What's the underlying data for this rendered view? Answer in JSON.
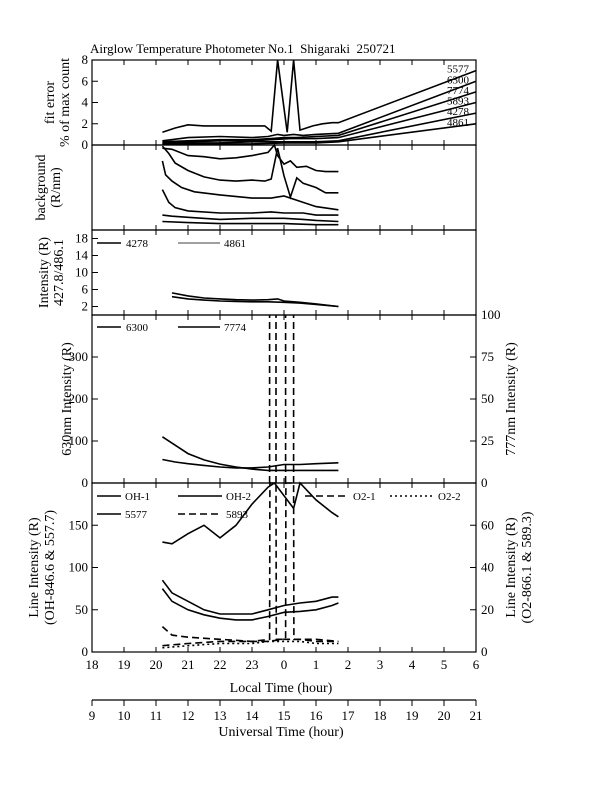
{
  "title": "Airglow Temperature Photometer No.1  Shigaraki  250721",
  "axes": {
    "local_time": {
      "label": "Local Time (hour)",
      "ticks": [
        "18",
        "19",
        "20",
        "21",
        "22",
        "23",
        "0",
        "1",
        "2",
        "3",
        "4",
        "5",
        "6"
      ]
    },
    "universal_time": {
      "label": "Universal Time (hour)",
      "ticks": [
        "9",
        "10",
        "11",
        "12",
        "13",
        "14",
        "15",
        "16",
        "17",
        "18",
        "19",
        "20",
        "21"
      ]
    }
  },
  "chart_data": [
    {
      "type": "line",
      "id": "fit_error",
      "ylabel_lines": [
        "fit error",
        "% of max count"
      ],
      "ylim": [
        0,
        8
      ],
      "yticks": [
        "0",
        "2",
        "4",
        "6",
        "8"
      ],
      "x_units": "universal time (hour)",
      "series": [
        {
          "name": "5577",
          "label": "5577",
          "dash": "solid",
          "x": [
            11.2,
            11.6,
            12.0,
            12.5,
            13.0,
            13.5,
            14.0,
            14.4,
            14.6,
            14.8,
            15.1,
            15.3,
            15.5,
            15.9,
            16.2,
            16.5,
            16.7,
            21.0
          ],
          "y": [
            1.2,
            1.6,
            1.9,
            1.8,
            1.8,
            1.8,
            1.8,
            1.8,
            1.3,
            8.0,
            1.2,
            8.0,
            1.4,
            1.8,
            2.0,
            2.1,
            2.1,
            7.0
          ]
        },
        {
          "name": "6300",
          "label": "6300",
          "dash": "solid",
          "x": [
            11.2,
            12.0,
            13.0,
            14.0,
            14.5,
            14.8,
            15.0,
            15.3,
            15.6,
            16.0,
            16.7,
            21.0
          ],
          "y": [
            0.4,
            0.7,
            0.8,
            0.7,
            0.8,
            1.0,
            0.9,
            1.0,
            0.9,
            1.0,
            1.1,
            6.0
          ]
        },
        {
          "name": "7774",
          "label": "7774",
          "dash": "solid",
          "x": [
            11.2,
            12.0,
            13.0,
            14.0,
            14.6,
            15.0,
            15.4,
            16.0,
            16.7,
            21.0
          ],
          "y": [
            0.3,
            0.4,
            0.5,
            0.5,
            0.6,
            0.7,
            0.7,
            0.8,
            0.9,
            5.0
          ]
        },
        {
          "name": "5893",
          "label": "5893",
          "dash": "solid",
          "x": [
            11.2,
            12.0,
            13.0,
            14.0,
            14.6,
            15.2,
            16.0,
            16.7,
            21.0
          ],
          "y": [
            0.2,
            0.3,
            0.4,
            0.4,
            0.5,
            0.6,
            0.6,
            0.7,
            4.0
          ]
        },
        {
          "name": "4278",
          "label": "4278",
          "dash": "solid",
          "x": [
            11.2,
            12.0,
            13.0,
            14.0,
            15.0,
            16.0,
            16.7,
            21.0
          ],
          "y": [
            0.1,
            0.2,
            0.2,
            0.3,
            0.3,
            0.3,
            0.4,
            3.0
          ]
        },
        {
          "name": "4861",
          "label": "4861",
          "dash": "solid",
          "x": [
            11.2,
            12.0,
            13.0,
            14.0,
            15.0,
            16.0,
            16.7,
            21.0
          ],
          "y": [
            0.1,
            0.1,
            0.1,
            0.1,
            0.2,
            0.2,
            0.3,
            2.0
          ]
        }
      ]
    },
    {
      "type": "line",
      "id": "background",
      "ylabel_lines": [
        "background",
        "(R/nm)"
      ],
      "ylim": [
        0,
        8
      ],
      "yticks": [],
      "x_units": "universal time (hour)",
      "series": [
        {
          "name": "bg-a",
          "dash": "solid",
          "x": [
            11.2,
            11.5,
            12.0,
            12.5,
            13.0,
            13.5,
            14.0,
            14.5,
            14.7,
            14.8,
            15.0,
            15.2,
            15.4,
            15.7,
            16.0,
            16.3,
            16.7
          ],
          "y": [
            7.7,
            7.6,
            7.0,
            6.9,
            6.7,
            6.8,
            7.0,
            7.3,
            8.0,
            7.0,
            6.2,
            6.5,
            5.9,
            6.0,
            5.6,
            5.5,
            5.5
          ]
        },
        {
          "name": "bg-b",
          "dash": "solid",
          "x": [
            11.2,
            11.4,
            11.6,
            12.0,
            12.5,
            13.0,
            13.5,
            14.0,
            14.4,
            14.6,
            14.8,
            15.0,
            15.2,
            15.4,
            15.6,
            16.0,
            16.3,
            16.7
          ],
          "y": [
            7.9,
            7.2,
            6.3,
            5.6,
            5.0,
            4.7,
            4.6,
            4.7,
            4.6,
            4.8,
            7.7,
            5.1,
            3.1,
            4.9,
            4.4,
            4.0,
            3.5,
            3.5
          ]
        },
        {
          "name": "bg-c",
          "dash": "solid",
          "x": [
            11.2,
            11.3,
            11.5,
            11.8,
            12.2,
            13.0,
            14.0,
            14.6,
            15.0,
            15.6,
            16.0,
            16.7
          ],
          "y": [
            6.5,
            5.2,
            4.6,
            4.0,
            3.6,
            3.3,
            3.0,
            3.0,
            3.2,
            2.6,
            2.2,
            1.9
          ]
        },
        {
          "name": "bg-d",
          "dash": "solid",
          "x": [
            11.2,
            11.4,
            11.6,
            12.0,
            13.0,
            14.0,
            14.6,
            15.0,
            15.6,
            16.0,
            16.7
          ],
          "y": [
            3.8,
            2.6,
            2.1,
            1.8,
            1.6,
            1.6,
            1.7,
            1.6,
            1.6,
            1.4,
            1.4
          ]
        },
        {
          "name": "bg-e",
          "dash": "solid",
          "x": [
            11.2,
            11.5,
            12.0,
            13.0,
            14.0,
            14.6,
            15.0,
            15.6,
            16.0,
            16.7
          ],
          "y": [
            1.4,
            1.3,
            1.2,
            1.0,
            1.1,
            1.1,
            1.1,
            1.0,
            0.9,
            0.8
          ]
        },
        {
          "name": "bg-f",
          "dash": "solid",
          "x": [
            11.2,
            12.0,
            13.0,
            14.0,
            15.0,
            16.0,
            16.7
          ],
          "y": [
            0.8,
            0.7,
            0.6,
            0.6,
            0.6,
            0.5,
            0.5
          ]
        }
      ]
    },
    {
      "type": "line",
      "id": "intensity_4278_4861",
      "ylabel_lines": [
        "Intensity (R)",
        "427.8/486.1"
      ],
      "ylim": [
        0,
        20
      ],
      "yticks": [
        "2",
        "6",
        "10",
        "14",
        "18"
      ],
      "x_units": "universal time (hour)",
      "series": [
        {
          "name": "4278",
          "label": "4278",
          "dash": "solid",
          "x": [
            11.5,
            12.0,
            12.5,
            13.0,
            13.5,
            14.0,
            14.5,
            14.8,
            15.0,
            15.5,
            16.0,
            16.7
          ],
          "y": [
            5.2,
            4.5,
            4.0,
            3.8,
            3.6,
            3.5,
            3.6,
            3.8,
            3.3,
            3.0,
            2.6,
            2.0
          ]
        },
        {
          "name": "4861",
          "label": "4861",
          "dash": "solid",
          "x": [
            11.5,
            12.0,
            12.5,
            13.0,
            13.5,
            14.0,
            14.5,
            15.0,
            15.5,
            16.0,
            16.7
          ],
          "y": [
            4.3,
            3.8,
            3.5,
            3.3,
            3.2,
            3.1,
            3.1,
            3.0,
            2.8,
            2.5,
            2.0
          ]
        }
      ]
    },
    {
      "type": "line",
      "id": "intensity_6300_7774",
      "ylabel_left": "630nm Intensity (R)",
      "ylabel_right": "777nm Intensity (R)",
      "ylim_left": [
        0,
        400
      ],
      "ylim_right": [
        0,
        100
      ],
      "yticks_left": [
        "0",
        "100",
        "200",
        "300"
      ],
      "yticks_right": [
        "0",
        "25",
        "50",
        "75",
        "100"
      ],
      "x_units": "universal time (hour)",
      "series": [
        {
          "name": "6300",
          "label": "6300",
          "axis": "left",
          "dash": "solid",
          "x": [
            11.2,
            11.6,
            12.0,
            12.5,
            13.0,
            13.5,
            14.0,
            14.5,
            15.0,
            15.5,
            16.0,
            16.7
          ],
          "y": [
            110,
            90,
            70,
            55,
            45,
            38,
            33,
            30,
            30,
            30,
            30,
            30
          ]
        },
        {
          "name": "7774",
          "label": "7774",
          "axis": "right",
          "dash": "solid",
          "x": [
            11.2,
            11.6,
            12.0,
            12.5,
            13.0,
            13.5,
            14.0,
            14.5,
            15.0,
            15.5,
            16.0,
            16.7
          ],
          "y": [
            14,
            12.5,
            11.5,
            10.5,
            9.5,
            9,
            9,
            9.5,
            11,
            11,
            11.5,
            12
          ]
        },
        {
          "name": "spike-a",
          "axis": "left",
          "dash": "dashed",
          "x": [
            14.55,
            14.55
          ],
          "y": [
            0,
            400
          ]
        },
        {
          "name": "spike-b",
          "axis": "left",
          "dash": "dashed",
          "x": [
            14.75,
            14.75
          ],
          "y": [
            0,
            400
          ]
        },
        {
          "name": "spike-c",
          "axis": "left",
          "dash": "dashed",
          "x": [
            15.05,
            15.05
          ],
          "y": [
            0,
            400
          ]
        },
        {
          "name": "spike-d",
          "axis": "left",
          "dash": "dashed",
          "x": [
            15.3,
            15.3
          ],
          "y": [
            0,
            400
          ]
        }
      ]
    },
    {
      "type": "line",
      "id": "line_intensity",
      "ylabel_left_lines": [
        "Line Intensity (R)",
        "(OH-846.6 & 557.7)"
      ],
      "ylabel_right_lines": [
        "Line Intensity (R)",
        "(O2-866.1 & 589.3)"
      ],
      "ylim_left": [
        0,
        200
      ],
      "ylim_right": [
        0,
        80
      ],
      "yticks_left": [
        "0",
        "50",
        "100",
        "150"
      ],
      "yticks_right": [
        "0",
        "20",
        "40",
        "60"
      ],
      "x_units": "universal time (hour)",
      "series": [
        {
          "name": "OH-1",
          "label": "OH-1",
          "axis": "left",
          "dash": "solid",
          "x": [
            11.2,
            11.5,
            12.0,
            12.5,
            13.0,
            13.5,
            14.0,
            14.5,
            15.0,
            15.5,
            16.0,
            16.5,
            16.7
          ],
          "y": [
            85,
            70,
            60,
            50,
            45,
            45,
            45,
            50,
            55,
            58,
            60,
            65,
            65
          ]
        },
        {
          "name": "OH-2",
          "label": "OH-2",
          "axis": "left",
          "dash": "solid",
          "x": [
            11.2,
            11.5,
            12.0,
            12.5,
            13.0,
            13.5,
            14.0,
            14.5,
            15.0,
            15.5,
            16.0,
            16.5,
            16.7
          ],
          "y": [
            75,
            60,
            50,
            44,
            40,
            38,
            38,
            42,
            47,
            48,
            50,
            55,
            58
          ]
        },
        {
          "name": "O2-1",
          "label": "O2-1",
          "axis": "right",
          "dash": "dashed",
          "x": [
            11.2,
            12.0,
            13.0,
            14.0,
            14.5,
            15.0,
            15.5,
            16.0,
            16.7
          ],
          "y": [
            3,
            4,
            5,
            5,
            5,
            6,
            6,
            5,
            5
          ]
        },
        {
          "name": "O2-2",
          "label": "O2-2",
          "axis": "right",
          "dash": "dotted",
          "x": [
            11.2,
            12.0,
            13.0,
            14.0,
            14.5,
            15.0,
            15.5,
            16.0,
            16.7
          ],
          "y": [
            2,
            3,
            4,
            4,
            5,
            5,
            5,
            4,
            4
          ]
        },
        {
          "name": "5577",
          "label": "5577",
          "axis": "left",
          "dash": "solid",
          "x": [
            11.2,
            11.5,
            12.0,
            12.5,
            13.0,
            13.5,
            14.0,
            14.5,
            14.7,
            15.0,
            15.3,
            15.5,
            16.0,
            16.5,
            16.7
          ],
          "y": [
            130,
            128,
            140,
            150,
            135,
            150,
            175,
            195,
            210,
            185,
            170,
            200,
            180,
            165,
            160
          ]
        },
        {
          "name": "5893",
          "label": "5893",
          "axis": "right",
          "dash": "dashed",
          "x": [
            11.2,
            11.5,
            12.0,
            13.0,
            14.0,
            14.55,
            14.56,
            14.75,
            14.76,
            15.05,
            15.06,
            15.3,
            15.31,
            16.0,
            16.7
          ],
          "y": [
            12,
            8,
            7,
            6,
            5,
            6,
            80,
            80,
            6,
            6,
            80,
            80,
            6,
            6,
            5
          ]
        }
      ]
    }
  ]
}
